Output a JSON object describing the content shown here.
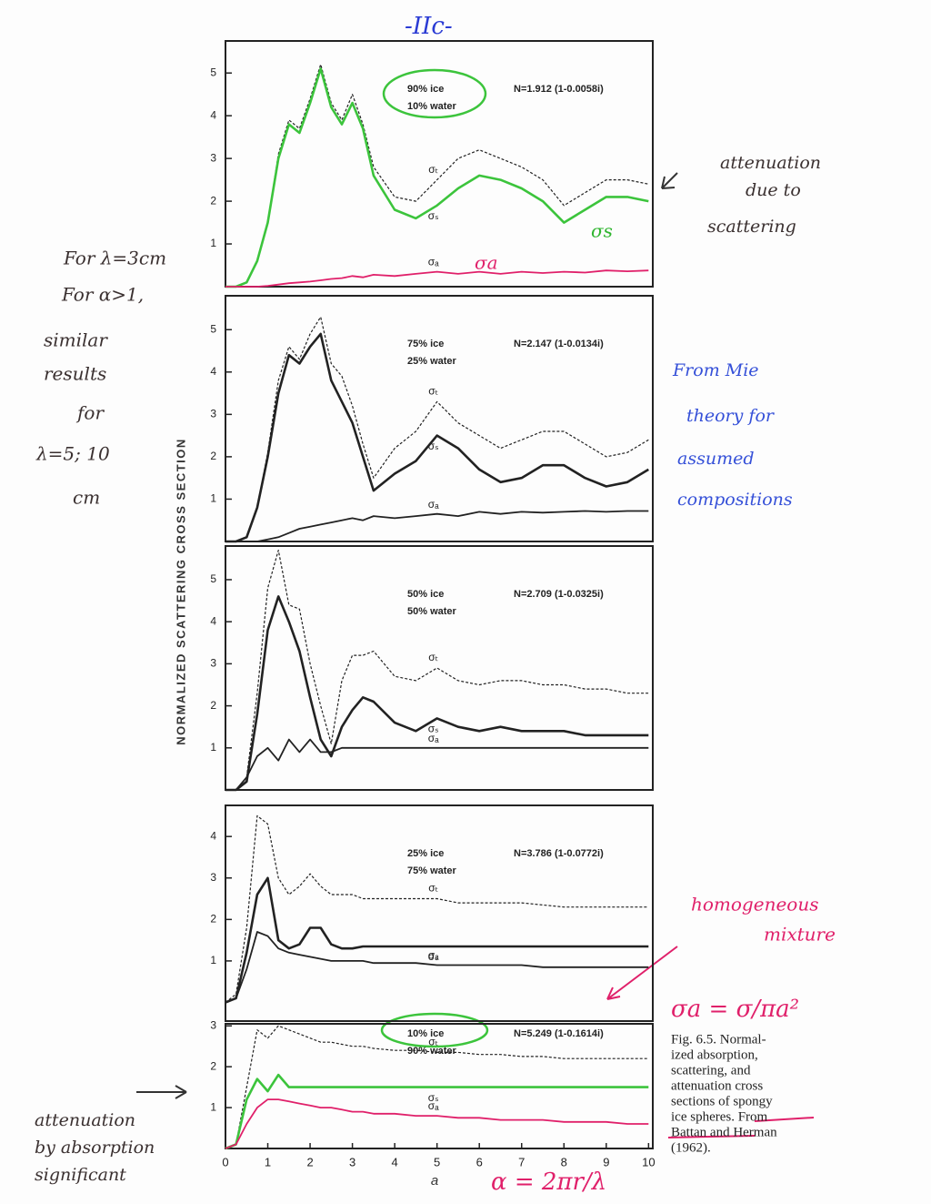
{
  "y_axis_label": "NORMALIZED SCATTERING CROSS SECTION",
  "x_axis_label": "a",
  "caption": [
    "Fig. 6.5. Normal-",
    "ized absorption,",
    "scattering, and",
    "attenuation cross",
    "sections of spongy",
    "ice spheres. From",
    "Battan and Herman",
    "(1962)."
  ],
  "annotations": [
    {
      "text": "-IIc-",
      "color": "#2a3bd4"
    },
    {
      "text": "For λ=3cm",
      "color": "#3a3030"
    },
    {
      "text": "For α>1,",
      "color": "#3a3030"
    },
    {
      "text": "similar",
      "color": "#3a3030"
    },
    {
      "text": "results",
      "color": "#3a3030"
    },
    {
      "text": "for",
      "color": "#3a3030"
    },
    {
      "text": "λ=5; 10",
      "color": "#3a3030"
    },
    {
      "text": "cm",
      "color": "#3a3030"
    },
    {
      "text": "attenuation",
      "color": "#3a3030"
    },
    {
      "text": "due to",
      "color": "#3a3030"
    },
    {
      "text": "scattering",
      "color": "#3a3030"
    },
    {
      "text": "From Mie",
      "color": "#3550d8"
    },
    {
      "text": "theory for",
      "color": "#3550d8"
    },
    {
      "text": "assumed",
      "color": "#3550d8"
    },
    {
      "text": "compositions",
      "color": "#3550d8"
    },
    {
      "text": "homogeneous",
      "color": "#e0206a"
    },
    {
      "text": "mixture",
      "color": "#e0206a"
    },
    {
      "text": "σa = σ/πa²",
      "color": "#e0206a"
    },
    {
      "text": "attenuation",
      "color": "#3a3030"
    },
    {
      "text": "by absorption",
      "color": "#3a3030"
    },
    {
      "text": "significant",
      "color": "#3a3030"
    },
    {
      "text": "α = 2πr/λ",
      "color": "#e0206a"
    },
    {
      "text": "σs",
      "color": "#2fb52f"
    },
    {
      "text": "σa",
      "color": "#e0206a"
    }
  ],
  "chart_data": [
    {
      "type": "line",
      "notes": [
        "90% ice",
        "10% water"
      ],
      "refractive_index": "N=1.912 (1-0.0058i)",
      "x": [
        0,
        0.25,
        0.5,
        0.75,
        1,
        1.25,
        1.5,
        1.75,
        2,
        2.25,
        2.5,
        2.75,
        3,
        3.25,
        3.5,
        4,
        4.5,
        5,
        5.5,
        6,
        6.5,
        7,
        7.5,
        8,
        8.5,
        9,
        9.5,
        10
      ],
      "xlim": [
        0,
        10.1
      ],
      "ylim": [
        0,
        5.75
      ],
      "yticks": [
        1,
        2,
        3,
        4,
        5
      ],
      "series": [
        {
          "name": "σₜ",
          "color": "#222222",
          "style": "dashed",
          "values": [
            0,
            0,
            0.1,
            0.6,
            1.5,
            3.1,
            3.9,
            3.7,
            4.4,
            5.2,
            4.3,
            3.9,
            4.5,
            3.8,
            2.8,
            2.1,
            2.0,
            2.5,
            3.0,
            3.2,
            3.0,
            2.8,
            2.5,
            1.9,
            2.2,
            2.5,
            2.5,
            2.4
          ]
        },
        {
          "name": "σₛ",
          "color": "#3cc43c",
          "style": "solid",
          "values": [
            0,
            0,
            0.1,
            0.6,
            1.5,
            3.0,
            3.8,
            3.6,
            4.3,
            5.1,
            4.2,
            3.8,
            4.3,
            3.7,
            2.6,
            1.8,
            1.6,
            1.9,
            2.3,
            2.6,
            2.5,
            2.3,
            2.0,
            1.5,
            1.8,
            2.1,
            2.1,
            2.0
          ]
        },
        {
          "name": "σₐ",
          "color": "#e0206a",
          "style": "solid",
          "values": [
            0,
            0,
            0,
            0,
            0.02,
            0.05,
            0.08,
            0.1,
            0.12,
            0.15,
            0.18,
            0.2,
            0.25,
            0.22,
            0.28,
            0.25,
            0.3,
            0.35,
            0.3,
            0.35,
            0.3,
            0.35,
            0.32,
            0.35,
            0.33,
            0.38,
            0.36,
            0.38
          ]
        }
      ]
    },
    {
      "type": "line",
      "notes": [
        "75% ice",
        "25% water"
      ],
      "refractive_index": "N=2.147 (1-0.0134i)",
      "x": [
        0,
        0.25,
        0.5,
        0.75,
        1,
        1.25,
        1.5,
        1.75,
        2,
        2.25,
        2.5,
        2.75,
        3,
        3.25,
        3.5,
        4,
        4.5,
        5,
        5.5,
        6,
        6.5,
        7,
        7.5,
        8,
        8.5,
        9,
        9.5,
        10
      ],
      "xlim": [
        0,
        10.1
      ],
      "ylim": [
        0,
        5.8
      ],
      "yticks": [
        1,
        2,
        3,
        4,
        5
      ],
      "series": [
        {
          "name": "σₜ",
          "color": "#222222",
          "style": "dashed",
          "values": [
            0,
            0,
            0.1,
            0.8,
            2.1,
            3.8,
            4.6,
            4.3,
            4.9,
            5.3,
            4.2,
            3.9,
            3.2,
            2.3,
            1.5,
            2.2,
            2.6,
            3.3,
            2.8,
            2.5,
            2.2,
            2.4,
            2.6,
            2.6,
            2.3,
            2.0,
            2.1,
            2.4
          ]
        },
        {
          "name": "σₛ",
          "color": "#222222",
          "style": "solid",
          "values": [
            0,
            0,
            0.1,
            0.8,
            2.0,
            3.5,
            4.4,
            4.2,
            4.6,
            4.9,
            3.8,
            3.3,
            2.8,
            2.0,
            1.2,
            1.6,
            1.9,
            2.5,
            2.2,
            1.7,
            1.4,
            1.5,
            1.8,
            1.8,
            1.5,
            1.3,
            1.4,
            1.7
          ]
        },
        {
          "name": "σₐ",
          "color": "#222222",
          "style": "solid",
          "values": [
            0,
            0,
            0,
            0,
            0.05,
            0.1,
            0.2,
            0.3,
            0.35,
            0.4,
            0.45,
            0.5,
            0.55,
            0.5,
            0.6,
            0.55,
            0.6,
            0.65,
            0.6,
            0.7,
            0.65,
            0.7,
            0.68,
            0.7,
            0.72,
            0.7,
            0.72,
            0.72
          ]
        }
      ]
    },
    {
      "type": "line",
      "notes": [
        "50% ice",
        "50% water"
      ],
      "refractive_index": "N=2.709 (1-0.0325i)",
      "x": [
        0,
        0.25,
        0.5,
        0.75,
        1,
        1.25,
        1.5,
        1.75,
        2,
        2.25,
        2.5,
        2.75,
        3,
        3.25,
        3.5,
        4,
        4.5,
        5,
        5.5,
        6,
        6.5,
        7,
        7.5,
        8,
        8.5,
        9,
        9.5,
        10
      ],
      "xlim": [
        0,
        10.1
      ],
      "ylim": [
        0,
        5.8
      ],
      "yticks": [
        1,
        2,
        3,
        4,
        5
      ],
      "series": [
        {
          "name": "σₜ",
          "color": "#222222",
          "style": "dashed",
          "values": [
            0,
            0,
            0.3,
            2.3,
            4.8,
            5.7,
            4.4,
            4.3,
            3.0,
            2.0,
            1.1,
            2.6,
            3.2,
            3.2,
            3.3,
            2.7,
            2.6,
            2.9,
            2.6,
            2.5,
            2.6,
            2.6,
            2.5,
            2.5,
            2.4,
            2.4,
            2.3,
            2.3
          ]
        },
        {
          "name": "σₛ",
          "color": "#222222",
          "style": "solid",
          "values": [
            0,
            0,
            0.2,
            1.8,
            3.8,
            4.6,
            4.0,
            3.3,
            2.2,
            1.2,
            0.8,
            1.5,
            1.9,
            2.2,
            2.1,
            1.6,
            1.4,
            1.7,
            1.5,
            1.4,
            1.5,
            1.4,
            1.4,
            1.4,
            1.3,
            1.3,
            1.3,
            1.3
          ]
        },
        {
          "name": "σₐ",
          "color": "#222222",
          "style": "solid",
          "values": [
            0,
            0,
            0.3,
            0.8,
            1.0,
            0.7,
            1.2,
            0.9,
            1.2,
            0.9,
            0.9,
            1.0,
            1.0,
            1.0,
            1.0,
            1.0,
            1.0,
            1.0,
            1.0,
            1.0,
            1.0,
            1.0,
            1.0,
            1.0,
            1.0,
            1.0,
            1.0,
            1.0
          ]
        }
      ]
    },
    {
      "type": "line",
      "notes": [
        "25% ice",
        "75% water"
      ],
      "refractive_index": "N=3.786 (1-0.0772i)",
      "x": [
        0,
        0.25,
        0.5,
        0.75,
        1,
        1.25,
        1.5,
        1.75,
        2,
        2.25,
        2.5,
        2.75,
        3,
        3.25,
        3.5,
        4,
        4.5,
        5,
        5.5,
        6,
        6.5,
        7,
        7.5,
        8,
        8.5,
        9,
        9.5,
        10
      ],
      "xlim": [
        0,
        10.1
      ],
      "ylim": [
        -0.45,
        4.75
      ],
      "yticks": [
        1,
        2,
        3,
        4
      ],
      "series": [
        {
          "name": "σₜ",
          "color": "#222222",
          "style": "dashed",
          "values": [
            0,
            0.2,
            1.8,
            4.5,
            4.3,
            3.0,
            2.6,
            2.8,
            3.1,
            2.8,
            2.6,
            2.6,
            2.6,
            2.5,
            2.5,
            2.5,
            2.5,
            2.5,
            2.4,
            2.4,
            2.4,
            2.4,
            2.35,
            2.3,
            2.3,
            2.3,
            2.3,
            2.3
          ]
        },
        {
          "name": "σₛ",
          "color": "#222222",
          "style": "solid",
          "values": [
            0,
            0.1,
            1.2,
            2.6,
            3.0,
            1.5,
            1.3,
            1.4,
            1.8,
            1.8,
            1.4,
            1.3,
            1.3,
            1.35,
            1.35,
            1.35,
            1.35,
            1.35,
            1.35,
            1.35,
            1.35,
            1.35,
            1.35,
            1.35,
            1.35,
            1.35,
            1.35,
            1.35
          ]
        },
        {
          "name": "σₐ",
          "color": "#222222",
          "style": "solid",
          "values": [
            0,
            0.1,
            0.8,
            1.7,
            1.6,
            1.3,
            1.2,
            1.15,
            1.1,
            1.05,
            1.0,
            1.0,
            1.0,
            1.0,
            0.95,
            0.95,
            0.95,
            0.9,
            0.9,
            0.9,
            0.9,
            0.9,
            0.85,
            0.85,
            0.85,
            0.85,
            0.85,
            0.85
          ]
        }
      ]
    },
    {
      "type": "line",
      "notes": [
        "10% ice",
        "90% water"
      ],
      "refractive_index": "N=5.249 (1-0.1614i)",
      "x": [
        0,
        0.25,
        0.5,
        0.75,
        1,
        1.25,
        1.5,
        1.75,
        2,
        2.25,
        2.5,
        2.75,
        3,
        3.25,
        3.5,
        4,
        4.5,
        5,
        5.5,
        6,
        6.5,
        7,
        7.5,
        8,
        8.5,
        9,
        9.5,
        10
      ],
      "xlim": [
        0,
        10.1
      ],
      "ylim": [
        0,
        3.05
      ],
      "yticks": [
        1,
        2,
        3
      ],
      "xticks": [
        0,
        1,
        2,
        3,
        4,
        5,
        6,
        7,
        8,
        9,
        10
      ],
      "series": [
        {
          "name": "σₜ",
          "color": "#222222",
          "style": "dashed",
          "values": [
            0,
            0.1,
            1.5,
            2.9,
            2.7,
            3.0,
            2.9,
            2.8,
            2.7,
            2.6,
            2.6,
            2.55,
            2.5,
            2.5,
            2.45,
            2.4,
            2.4,
            2.35,
            2.35,
            2.3,
            2.3,
            2.25,
            2.25,
            2.2,
            2.2,
            2.2,
            2.2,
            2.2
          ]
        },
        {
          "name": "σₛ",
          "color": "#3cc43c",
          "style": "solid",
          "values": [
            0,
            0.1,
            1.2,
            1.7,
            1.4,
            1.8,
            1.5,
            1.5,
            1.5,
            1.5,
            1.5,
            1.5,
            1.5,
            1.5,
            1.5,
            1.5,
            1.5,
            1.5,
            1.5,
            1.5,
            1.5,
            1.5,
            1.5,
            1.5,
            1.5,
            1.5,
            1.5,
            1.5
          ]
        },
        {
          "name": "σₐ",
          "color": "#e0206a",
          "style": "solid",
          "values": [
            0,
            0.1,
            0.6,
            1.0,
            1.2,
            1.2,
            1.15,
            1.1,
            1.05,
            1.0,
            1.0,
            0.95,
            0.9,
            0.9,
            0.85,
            0.85,
            0.8,
            0.8,
            0.75,
            0.75,
            0.7,
            0.7,
            0.7,
            0.65,
            0.65,
            0.65,
            0.6,
            0.6
          ]
        }
      ]
    }
  ]
}
